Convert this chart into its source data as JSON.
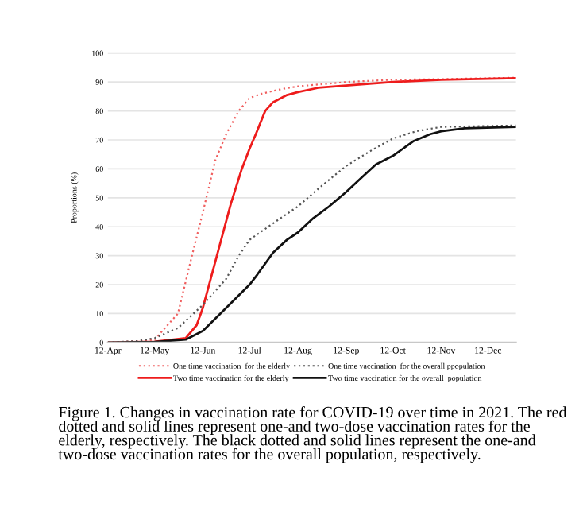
{
  "chart_data": {
    "type": "line",
    "ylabel": "Proportions (%)",
    "x": [
      "2021-04-12",
      "2021-05-01",
      "2021-05-12",
      "2021-05-27",
      "2021-06-05",
      "2021-06-12",
      "2021-06-20",
      "2021-06-27",
      "2021-07-05",
      "2021-07-12",
      "2021-07-20",
      "2021-08-01",
      "2021-08-12",
      "2021-09-12",
      "2021-10-12",
      "2021-11-12",
      "2021-12-30"
    ],
    "series": [
      {
        "name": "One time vaccination  for the elderly",
        "color": "#f06060",
        "line_style": "dotted",
        "values": [
          0,
          0.5,
          1,
          10,
          30,
          45,
          63,
          72,
          80,
          84.5,
          86,
          87.5,
          88.5,
          90,
          90.8,
          91,
          91.5
        ]
      },
      {
        "name": "Two time vaccination for the elderly",
        "color": "#ee1c1c",
        "line_style": "solid",
        "x": [
          "2021-04-12",
          "2021-05-12",
          "2021-06-01",
          "2021-06-08",
          "2021-06-12",
          "2021-06-17",
          "2021-06-22",
          "2021-06-30",
          "2021-07-07",
          "2021-07-12",
          "2021-07-16",
          "2021-07-22",
          "2021-07-27",
          "2021-08-05",
          "2021-08-12",
          "2021-08-25",
          "2021-09-12",
          "2021-10-12",
          "2021-11-12",
          "2021-12-30"
        ],
        "values": [
          0,
          0.3,
          1.5,
          6,
          12,
          22,
          32,
          48,
          60,
          67,
          72,
          80,
          83,
          85.5,
          86.5,
          88,
          88.8,
          90,
          90.8,
          91.3
        ]
      },
      {
        "name": "One time vaccination  for the overall ppopulation",
        "color": "#555555",
        "line_style": "dotted",
        "x": [
          "2021-04-12",
          "2021-05-01",
          "2021-05-12",
          "2021-05-27",
          "2021-06-12",
          "2021-06-27",
          "2021-07-05",
          "2021-07-12",
          "2021-07-20",
          "2021-08-01",
          "2021-08-12",
          "2021-08-27",
          "2021-09-12",
          "2021-09-27",
          "2021-10-12",
          "2021-10-27",
          "2021-11-12",
          "2021-12-30"
        ],
        "values": [
          0,
          0.5,
          1.5,
          5,
          13,
          22,
          30,
          35.5,
          38.5,
          43,
          47,
          54,
          61,
          66,
          70.5,
          73,
          74.5,
          75
        ]
      },
      {
        "name": "Two time vaccination for the overall  population",
        "color": "#111111",
        "line_style": "solid",
        "x": [
          "2021-04-12",
          "2021-05-12",
          "2021-06-01",
          "2021-06-12",
          "2021-06-27",
          "2021-07-12",
          "2021-07-17",
          "2021-07-27",
          "2021-08-05",
          "2021-08-12",
          "2021-08-22",
          "2021-09-01",
          "2021-09-12",
          "2021-09-22",
          "2021-10-01",
          "2021-10-12",
          "2021-10-25",
          "2021-11-05",
          "2021-11-12",
          "2021-11-27",
          "2021-12-30"
        ],
        "values": [
          0,
          0.2,
          1,
          4,
          12,
          20,
          23.5,
          31,
          35.5,
          38,
          43,
          47,
          52,
          57,
          61.5,
          64.5,
          69.5,
          72,
          73,
          74,
          74.5
        ]
      }
    ],
    "xlim": [
      "2021-04-12",
      "2021-12-30"
    ],
    "xticks": [
      {
        "value": "2021-04-12",
        "label": "12-Apr"
      },
      {
        "value": "2021-05-12",
        "label": "12-May"
      },
      {
        "value": "2021-06-12",
        "label": "12-Jun"
      },
      {
        "value": "2021-07-12",
        "label": "12-Jul"
      },
      {
        "value": "2021-08-12",
        "label": "12-Aug"
      },
      {
        "value": "2021-09-12",
        "label": "12-Sep"
      },
      {
        "value": "2021-10-12",
        "label": "12-Oct"
      },
      {
        "value": "2021-11-12",
        "label": "12-Nov"
      },
      {
        "value": "2021-12-12",
        "label": "12-Dec"
      }
    ],
    "ylim": [
      0,
      100
    ],
    "yticks": [
      0,
      10,
      20,
      30,
      40,
      50,
      60,
      70,
      80,
      90,
      100
    ],
    "grid": "y",
    "legend": "bottom",
    "marker": "none",
    "annotations": [
      "Figure 1. Changes in vaccination rate for COVID-19 over time in 2021. The red dotted and solid lines represent one-and two-dose vaccination rates for the elderly, respectively. The black dotted and solid lines represent the one-and two-dose vaccination rates for the overall population, respectively."
    ]
  }
}
